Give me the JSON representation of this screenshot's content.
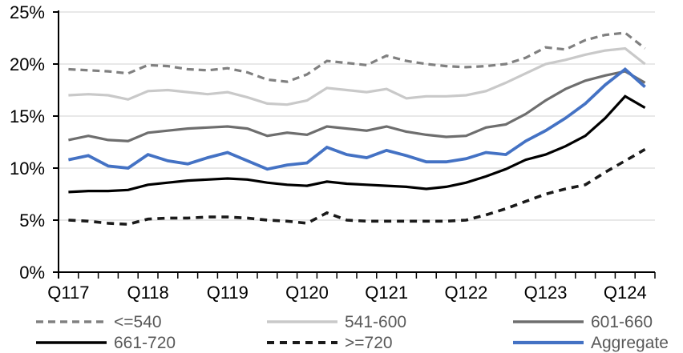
{
  "chart_data": {
    "type": "line",
    "title": "",
    "y_axis": {
      "min": 0,
      "max": 25,
      "step": 5,
      "tick_labels": [
        "0%",
        "5%",
        "10%",
        "15%",
        "20%",
        "25%"
      ],
      "unit": "%"
    },
    "x_axis": {
      "visible_tick_labels": [
        "Q117",
        "Q118",
        "Q119",
        "Q120",
        "Q121",
        "Q122",
        "Q123",
        "Q124"
      ],
      "label_every": 4
    },
    "categories": [
      "Q117",
      "Q217",
      "Q317",
      "Q417",
      "Q118",
      "Q218",
      "Q318",
      "Q418",
      "Q119",
      "Q219",
      "Q319",
      "Q419",
      "Q120",
      "Q220",
      "Q320",
      "Q420",
      "Q121",
      "Q221",
      "Q321",
      "Q421",
      "Q122",
      "Q222",
      "Q322",
      "Q422",
      "Q123",
      "Q223",
      "Q323",
      "Q423",
      "Q124",
      "Q224"
    ],
    "grid": {
      "horizontal": true,
      "color": "#d9d9d9"
    },
    "axis_color": "#000000",
    "series": [
      {
        "name": "<=540",
        "color": "#808080",
        "dash": "9 6",
        "width": 3.2,
        "values": [
          19.5,
          19.4,
          19.3,
          19.1,
          19.9,
          19.8,
          19.5,
          19.4,
          19.6,
          19.2,
          18.5,
          18.3,
          19.0,
          20.3,
          20.1,
          19.9,
          20.8,
          20.3,
          20.0,
          19.8,
          19.7,
          19.8,
          20.0,
          20.6,
          21.6,
          21.4,
          22.3,
          22.8,
          23.0,
          21.5
        ]
      },
      {
        "name": "541-600",
        "color": "#c9c9c9",
        "dash": null,
        "width": 3.2,
        "values": [
          17.0,
          17.1,
          17.0,
          16.6,
          17.4,
          17.5,
          17.3,
          17.1,
          17.3,
          16.8,
          16.2,
          16.1,
          16.5,
          17.7,
          17.5,
          17.3,
          17.6,
          16.7,
          16.9,
          16.9,
          17.0,
          17.4,
          18.2,
          19.1,
          20.0,
          20.4,
          20.9,
          21.3,
          21.5,
          20.0
        ]
      },
      {
        "name": "601-660",
        "color": "#6e6e6e",
        "dash": null,
        "width": 3.2,
        "values": [
          12.7,
          13.1,
          12.7,
          12.6,
          13.4,
          13.6,
          13.8,
          13.9,
          14.0,
          13.8,
          13.1,
          13.4,
          13.2,
          14.0,
          13.8,
          13.6,
          14.0,
          13.5,
          13.2,
          13.0,
          13.1,
          13.9,
          14.2,
          15.2,
          16.5,
          17.6,
          18.4,
          18.9,
          19.3,
          18.2
        ]
      },
      {
        "name": "661-720",
        "color": "#000000",
        "dash": null,
        "width": 3.2,
        "values": [
          7.7,
          7.8,
          7.8,
          7.9,
          8.4,
          8.6,
          8.8,
          8.9,
          9.0,
          8.9,
          8.6,
          8.4,
          8.3,
          8.7,
          8.5,
          8.4,
          8.3,
          8.2,
          8.0,
          8.2,
          8.6,
          9.2,
          9.9,
          10.8,
          11.3,
          12.1,
          13.1,
          14.8,
          16.9,
          15.8
        ]
      },
      {
        "name": ">=720",
        "color": "#1a1a1a",
        "dash": "9 7",
        "width": 3.6,
        "values": [
          5.0,
          4.9,
          4.7,
          4.6,
          5.1,
          5.2,
          5.2,
          5.3,
          5.3,
          5.2,
          5.0,
          4.9,
          4.7,
          5.7,
          5.0,
          4.9,
          4.9,
          4.9,
          4.9,
          4.9,
          5.0,
          5.5,
          6.1,
          6.8,
          7.5,
          8.0,
          8.4,
          9.6,
          10.7,
          11.8
        ]
      },
      {
        "name": "Aggregate",
        "color": "#4472c4",
        "dash": null,
        "width": 3.8,
        "values": [
          10.8,
          11.2,
          10.2,
          10.0,
          11.3,
          10.7,
          10.4,
          11.0,
          11.5,
          10.7,
          9.9,
          10.3,
          10.5,
          12.0,
          11.3,
          11.0,
          11.7,
          11.2,
          10.6,
          10.6,
          10.9,
          11.5,
          11.3,
          12.6,
          13.6,
          14.8,
          16.2,
          18.0,
          19.5,
          17.8
        ]
      }
    ],
    "legend": {
      "position": "bottom",
      "text_color": "#595959",
      "rows": [
        [
          "<=540",
          "541-600",
          "601-660"
        ],
        [
          "661-720",
          ">=720",
          "Aggregate"
        ]
      ]
    }
  }
}
